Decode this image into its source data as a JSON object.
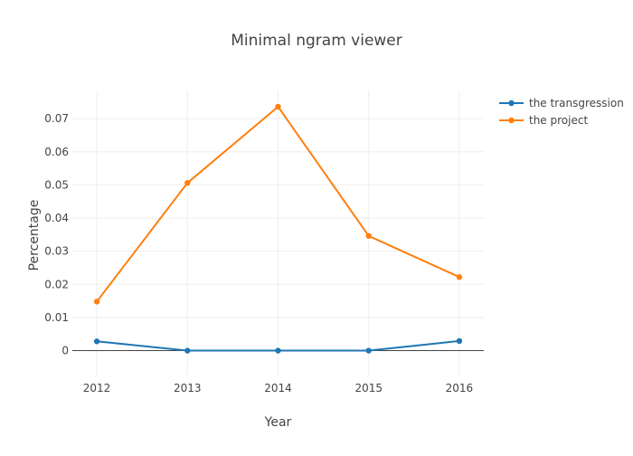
{
  "chart_data": {
    "type": "line",
    "title": "Minimal ngram viewer",
    "xlabel": "Year",
    "ylabel": "Percentage",
    "x": [
      2012,
      2013,
      2014,
      2015,
      2016
    ],
    "x_ticks": [
      "2012",
      "2013",
      "2014",
      "2015",
      "2016"
    ],
    "y_ticks": [
      "0",
      "0.01",
      "0.02",
      "0.03",
      "0.04",
      "0.05",
      "0.06",
      "0.07"
    ],
    "ylim": [
      -0.0075,
      0.0785
    ],
    "grid": true,
    "legend_position": "top-right",
    "series": [
      {
        "name": "the transgression",
        "color": "#1f77b4",
        "values": [
          0.0028,
          0.0,
          0.0,
          0.0,
          0.0029
        ]
      },
      {
        "name": "the project",
        "color": "#ff7f0e",
        "values": [
          0.0148,
          0.0506,
          0.0736,
          0.0346,
          0.0222
        ]
      }
    ]
  }
}
